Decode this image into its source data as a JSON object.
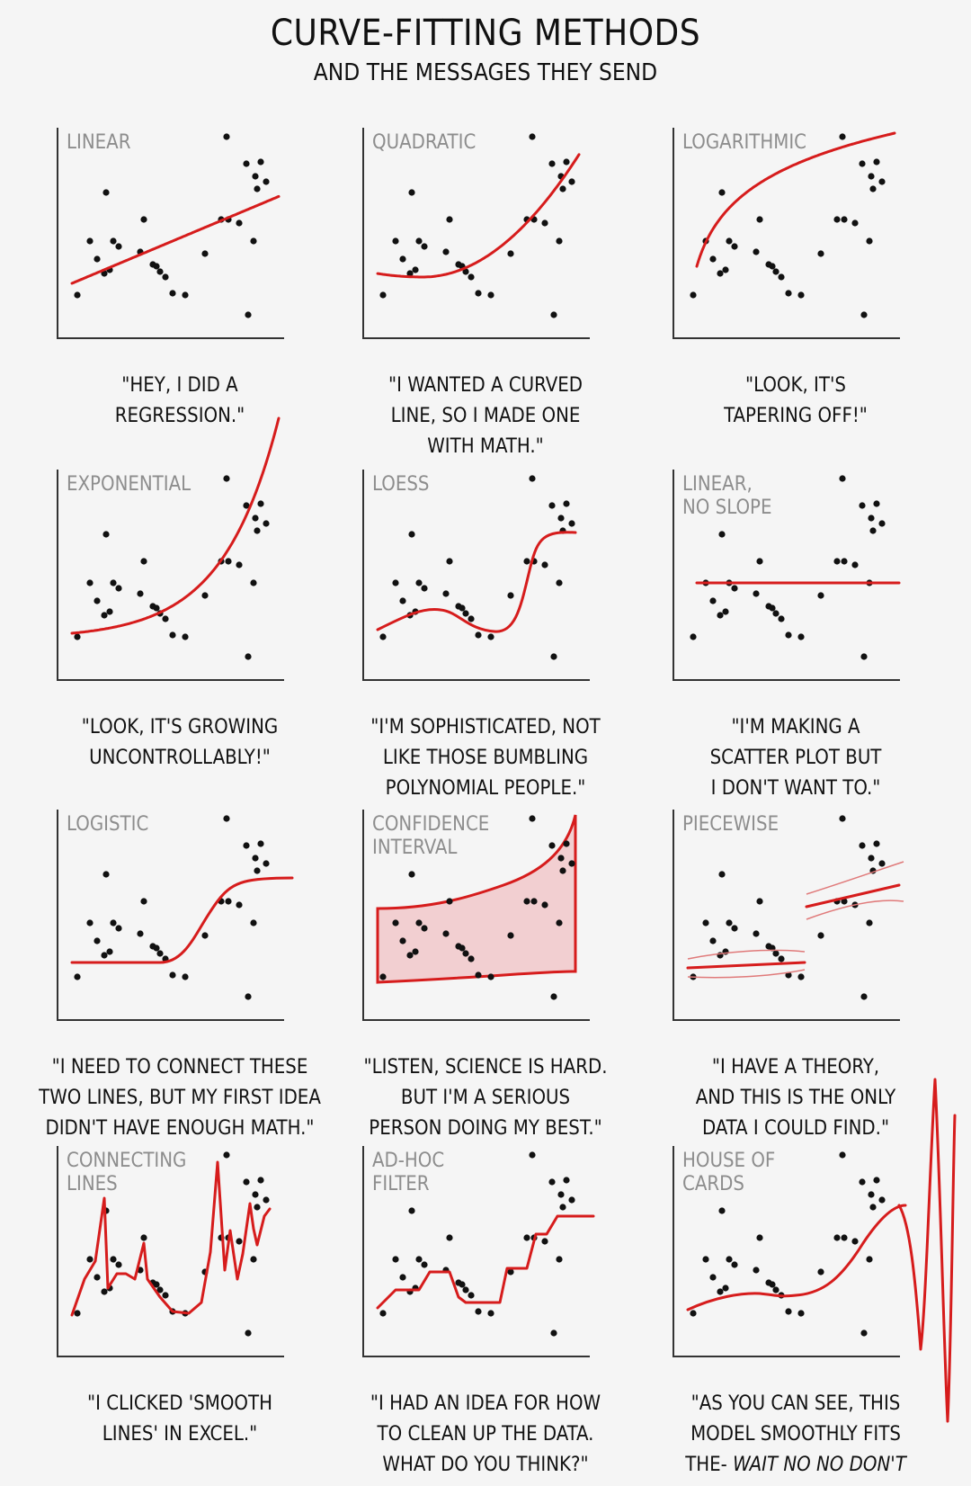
{
  "header": {
    "title": "CURVE-FITTING METHODS",
    "subtitle": "AND THE MESSAGES THEY SEND"
  },
  "colors": {
    "fit": "#d61c1c",
    "band": "#f2cfd1",
    "label": "#8d8d8d"
  },
  "panels": [
    {
      "label": "LINEAR",
      "caption": "\"HEY, I DID A\nREGRESSION.\""
    },
    {
      "label": "QUADRATIC",
      "caption": "\"I WANTED A CURVED\nLINE, SO I MADE ONE\nWITH MATH.\""
    },
    {
      "label": "LOGARITHMIC",
      "caption": "\"LOOK, IT'S\nTAPERING OFF!\""
    },
    {
      "label": "EXPONENTIAL",
      "caption": "\"LOOK, IT'S GROWING\nUNCONTROLLABLY!\""
    },
    {
      "label": "LOESS",
      "caption": "\"I'M SOPHISTICATED, NOT\nLIKE THOSE BUMBLING\nPOLYNOMIAL PEOPLE.\""
    },
    {
      "label": "LINEAR,\nNO SLOPE",
      "caption": "\"I'M MAKING A\nSCATTER PLOT BUT\nI DON'T WANT TO.\""
    },
    {
      "label": "LOGISTIC",
      "caption": "\"I NEED TO CONNECT THESE\nTWO LINES, BUT MY FIRST IDEA\nDIDN'T HAVE ENOUGH MATH.\""
    },
    {
      "label": "CONFIDENCE\nINTERVAL",
      "caption": "\"LISTEN, SCIENCE IS HARD.\nBUT I'M A SERIOUS\nPERSON DOING MY BEST.\""
    },
    {
      "label": "PIECEWISE",
      "caption": "\"I HAVE A THEORY,\nAND THIS IS THE ONLY\nDATA I COULD FIND.\""
    },
    {
      "label": "CONNECTING\nLINES",
      "caption": "\"I CLICKED 'SMOOTH\nLINES' IN EXCEL.\""
    },
    {
      "label": "AD-HOC\nFILTER",
      "caption": "\"I HAD AN IDEA FOR HOW\nTO CLEAN UP THE DATA.\nWHAT DO YOU THINK?\""
    },
    {
      "label": "HOUSE OF\nCARDS",
      "caption_main": "\"AS YOU CAN SEE, THIS\nMODEL SMOOTHLY FITS\nTHE- ",
      "caption_em": "WAIT NO NO DON'T"
    }
  ]
}
